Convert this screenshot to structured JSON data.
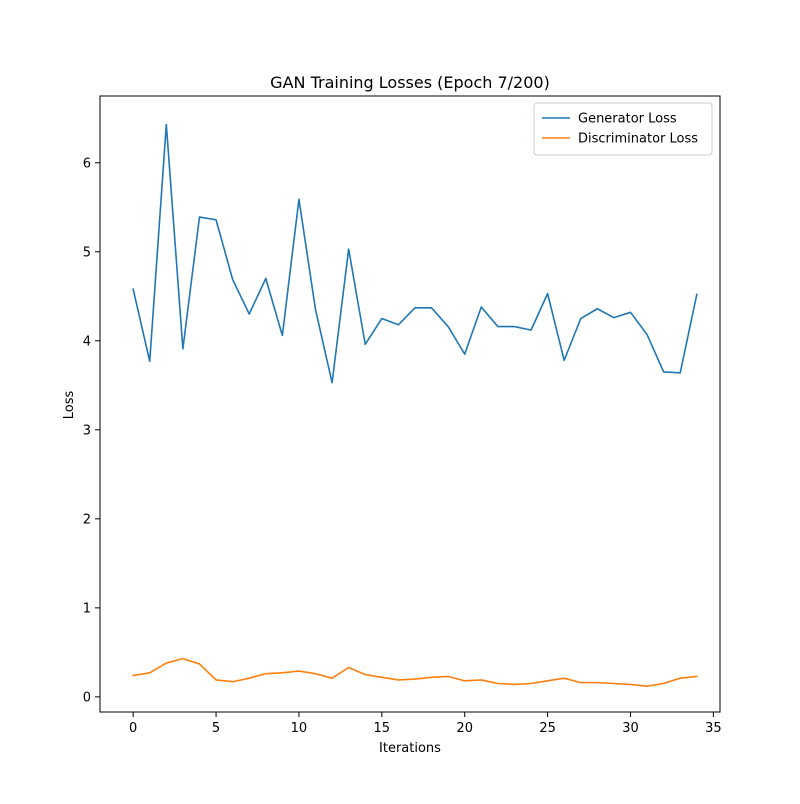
{
  "chart_data": {
    "type": "line",
    "title": "GAN Training Losses (Epoch 7/200)",
    "xlabel": "Iterations",
    "ylabel": "Loss",
    "xlim": [
      -2.0,
      35.4
    ],
    "ylim": [
      -0.17,
      6.75
    ],
    "x_ticks": [
      0,
      5,
      10,
      15,
      20,
      25,
      30,
      35
    ],
    "y_ticks": [
      0,
      1,
      2,
      3,
      4,
      5,
      6
    ],
    "grid": false,
    "legend_position": "top-right",
    "x": [
      0,
      1,
      2,
      3,
      4,
      5,
      6,
      7,
      8,
      9,
      10,
      11,
      12,
      13,
      14,
      15,
      16,
      17,
      18,
      19,
      20,
      21,
      22,
      23,
      24,
      25,
      26,
      27,
      28,
      29,
      30,
      31,
      32,
      33,
      34
    ],
    "series": [
      {
        "name": "Generator Loss",
        "color": "#1f77b4",
        "values": [
          4.58,
          3.77,
          6.43,
          3.91,
          5.39,
          5.36,
          4.69,
          4.3,
          4.7,
          4.06,
          5.59,
          4.35,
          3.53,
          5.03,
          3.96,
          4.25,
          4.18,
          4.37,
          4.37,
          4.16,
          3.85,
          4.38,
          4.16,
          4.16,
          4.12,
          4.53,
          3.78,
          4.25,
          4.36,
          4.26,
          4.32,
          4.07,
          3.65,
          3.64,
          4.52
        ]
      },
      {
        "name": "Discriminator Loss",
        "color": "#ff7f0e",
        "values": [
          0.24,
          0.27,
          0.38,
          0.43,
          0.37,
          0.19,
          0.17,
          0.21,
          0.26,
          0.27,
          0.29,
          0.26,
          0.21,
          0.33,
          0.25,
          0.22,
          0.19,
          0.2,
          0.22,
          0.23,
          0.18,
          0.19,
          0.15,
          0.14,
          0.15,
          0.18,
          0.21,
          0.16,
          0.16,
          0.15,
          0.14,
          0.12,
          0.15,
          0.21,
          0.23
        ]
      }
    ]
  }
}
